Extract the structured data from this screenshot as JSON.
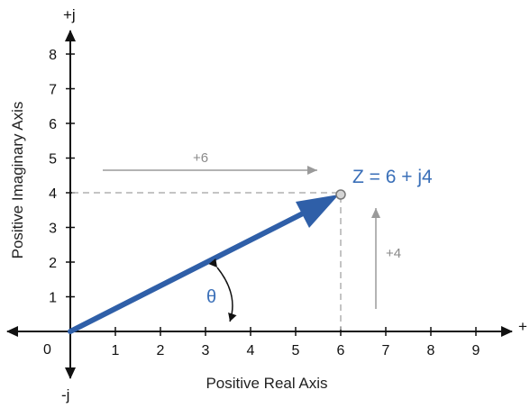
{
  "diagram": {
    "axis_label_positive_imaginary_top": "+j",
    "axis_label_negative_imaginary_bottom": "-j",
    "axis_label_positive_real_right": "+",
    "origin_label": "0",
    "x_axis_title": "Positive Real Axis",
    "y_axis_title": "Positive Imaginary Axis",
    "x_ticks": [
      "1",
      "2",
      "3",
      "4",
      "5",
      "6",
      "7",
      "8",
      "9"
    ],
    "y_ticks": [
      "1",
      "2",
      "3",
      "4",
      "5",
      "6",
      "7",
      "8"
    ],
    "point_label": "Z = 6 + j4",
    "real_component_label": "+6",
    "imaginary_component_label": "+4",
    "angle_label": "θ",
    "vector": {
      "real": 6,
      "imaginary": 4
    },
    "colors": {
      "vector": "#2f5fa8",
      "label_blue": "#3a6fb8",
      "component_arrow": "#9a9a9a",
      "dashed": "#b0b0b0",
      "axes": "#111111"
    }
  }
}
